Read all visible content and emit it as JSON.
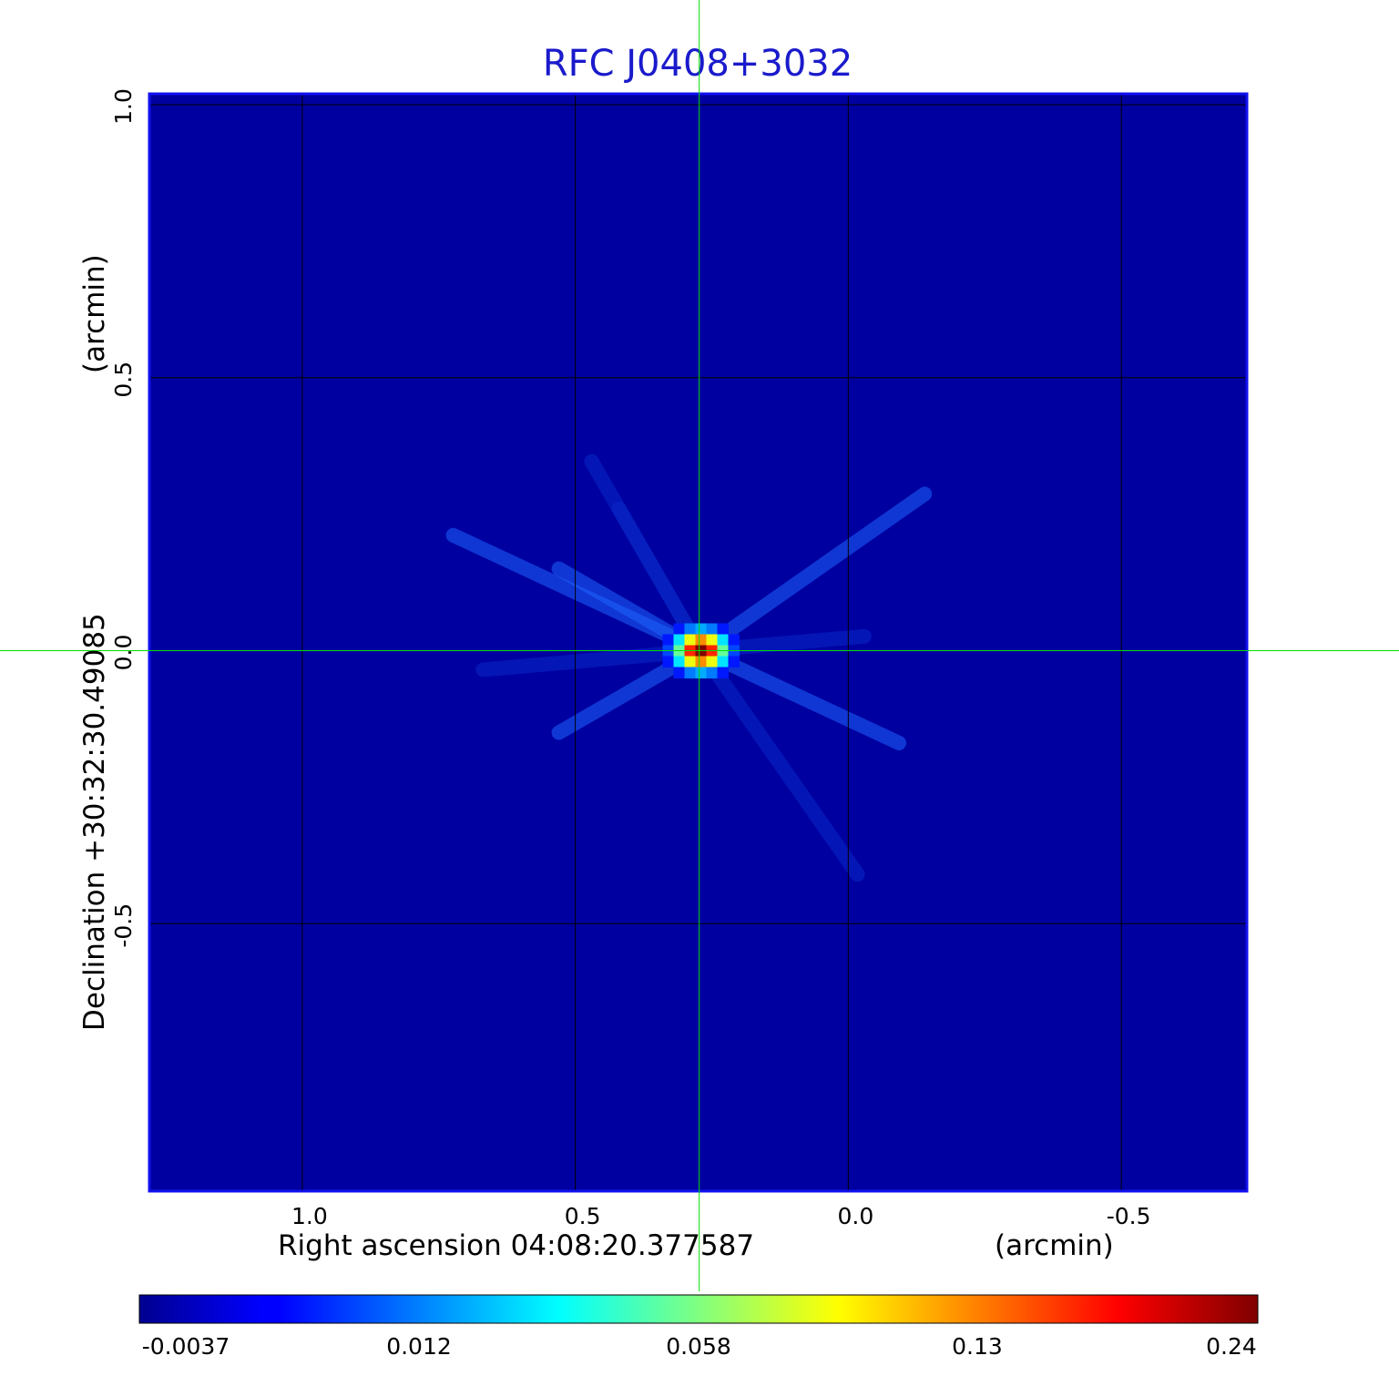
{
  "chart_data": {
    "type": "heatmap",
    "title": "RFC J0408+3032",
    "title_color": "#1a1acc",
    "xlabel": "Right ascension  04:08:20.377587",
    "xlabel_unit": "(arcmin)",
    "ylabel": "Declination  +30:32:30.49085",
    "ylabel_unit": "(arcmin)",
    "x_axis_direction": "decreasing to the right",
    "xlim": [
      1.28,
      -0.73
    ],
    "ylim": [
      -0.99,
      1.02
    ],
    "x_ticks": [
      1.0,
      0.5,
      0.0,
      -0.5
    ],
    "x_tick_labels": [
      "1.0",
      "0.5",
      "0.0",
      "-0.5"
    ],
    "y_ticks": [
      1.0,
      0.5,
      0.0,
      -0.5
    ],
    "y_tick_labels": [
      "1.0",
      "0.5",
      "0.0",
      "-0.5"
    ],
    "grid": true,
    "grid_color": "#000000",
    "crosshair": {
      "x": 0.273,
      "y": 0.0,
      "color": "#00e000"
    },
    "colormap": "jet",
    "colorbar": {
      "orientation": "horizontal",
      "placement": "bottom",
      "ticks": [
        -0.0037,
        0.012,
        0.058,
        0.13,
        0.24
      ],
      "tick_labels": [
        "-0.0037",
        "0.012",
        "0.058",
        "0.13",
        "0.24"
      ]
    },
    "peak": {
      "x": 0.27,
      "y": 0.0,
      "value": 0.24
    },
    "background_value": 0.004,
    "frame_color": "#1010ee"
  }
}
